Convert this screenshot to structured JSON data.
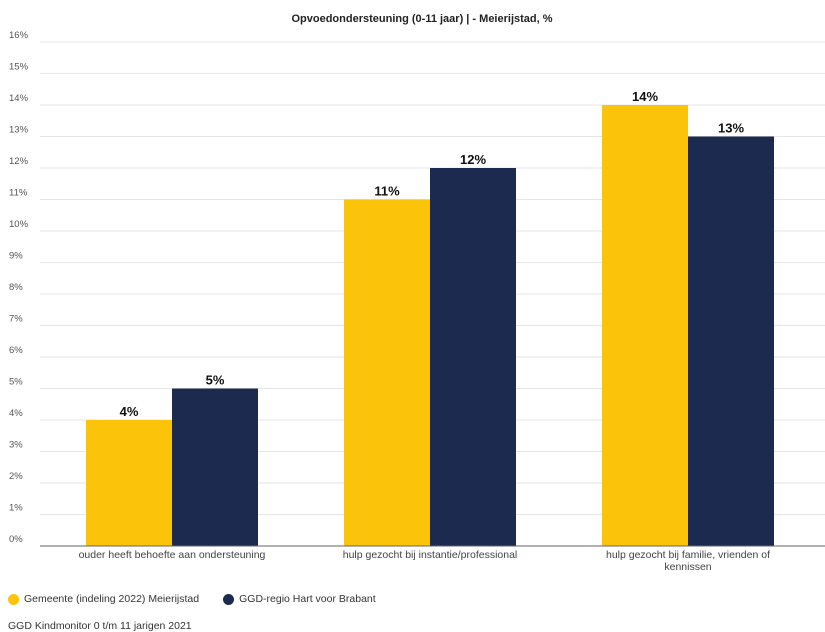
{
  "chart_data": {
    "type": "bar",
    "title": "Opvoedondersteuning (0-11 jaar) | - Meierijstad, %",
    "categories": [
      [
        "ouder heeft behoefte aan ondersteuning"
      ],
      [
        "hulp gezocht bij instantie/professional"
      ],
      [
        "hulp gezocht bij familie, vrienden of",
        "kennissen"
      ]
    ],
    "series": [
      {
        "name": "Gemeente (indeling 2022) Meierijstad",
        "color": "#FCC30B",
        "values": [
          4,
          11,
          14
        ],
        "labels": [
          "4%",
          "11%",
          "14%"
        ]
      },
      {
        "name": "GGD-regio Hart voor Brabant",
        "color": "#1B2A4E",
        "values": [
          5,
          12,
          13
        ],
        "labels": [
          "5%",
          "12%",
          "13%"
        ]
      }
    ],
    "ylim": [
      0,
      16
    ],
    "yticks": [
      0,
      1,
      2,
      3,
      4,
      5,
      6,
      7,
      8,
      9,
      10,
      11,
      12,
      13,
      14,
      15,
      16
    ],
    "ytick_labels": [
      "0%",
      "1%",
      "2%",
      "3%",
      "4%",
      "5%",
      "6%",
      "7%",
      "8%",
      "9%",
      "10%",
      "11%",
      "12%",
      "13%",
      "14%",
      "15%",
      "16%"
    ],
    "grid": true,
    "legend": "bottom-left",
    "xlabel": "",
    "ylabel": ""
  },
  "source": "GGD Kindmonitor 0 t/m 11 jarigen 2021"
}
